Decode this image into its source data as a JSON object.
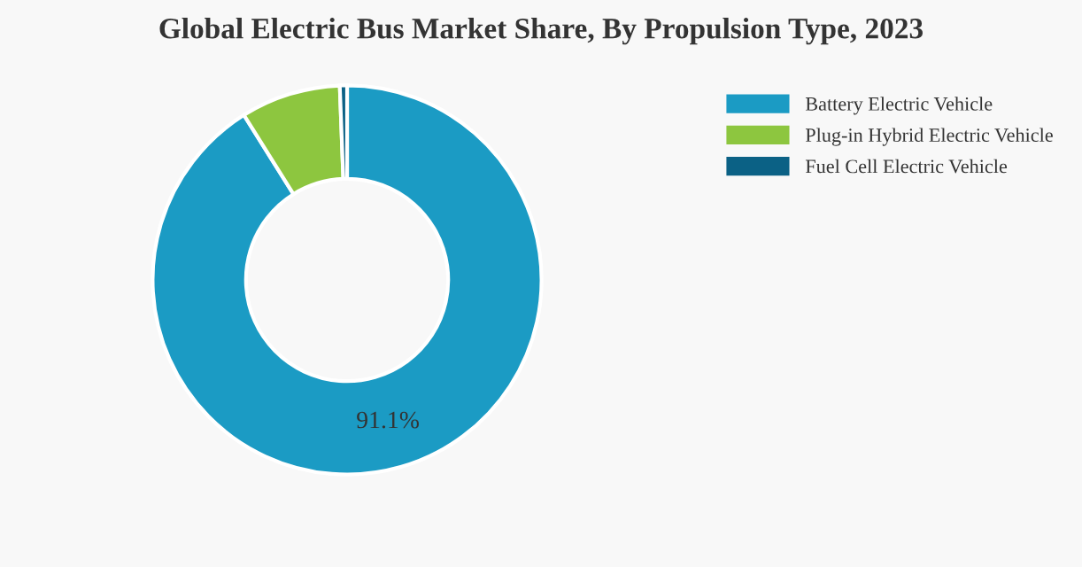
{
  "chart_data": {
    "type": "donut",
    "title": "Global Electric Bus Market Share, By Propulsion Type, 2023",
    "categories": [
      "Battery Electric Vehicle",
      "Plug-in Hybrid Electric Vehicle",
      "Fuel Cell Electric Vehicle"
    ],
    "values": [
      91.1,
      8.3,
      0.6
    ],
    "colors": [
      "#1b9bc4",
      "#8dc63f",
      "#0b6185"
    ],
    "value_labels": [
      "91.1%",
      null,
      null
    ],
    "legend": "top right"
  }
}
